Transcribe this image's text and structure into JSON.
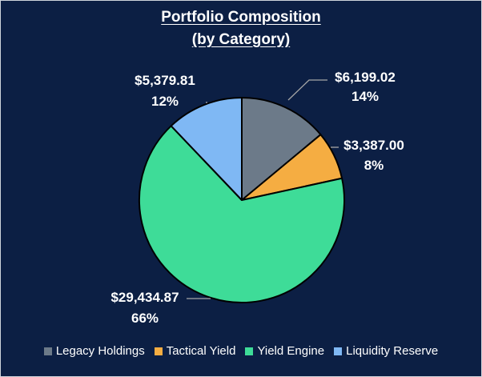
{
  "chart_data": {
    "type": "pie",
    "title_line1": "Portfolio Composition",
    "title_line2": "(by Category)",
    "start_angle_deg": 0,
    "direction": "clockwise",
    "slices": [
      {
        "label": "Legacy Holdings",
        "value": 6199.02,
        "value_label": "$6,199.02",
        "percent_label": "14%",
        "color": "#6c7a89"
      },
      {
        "label": "Tactical Yield",
        "value": 3387.0,
        "value_label": "$3,387.00",
        "percent_label": "8%",
        "color": "#f5ad42"
      },
      {
        "label": "Yield Engine",
        "value": 29434.87,
        "value_label": "$29,434.87",
        "percent_label": "66%",
        "color": "#3edc98"
      },
      {
        "label": "Liquidity Reserve",
        "value": 5379.81,
        "value_label": "$5,379.81",
        "percent_label": "12%",
        "color": "#7fb8f4"
      }
    ],
    "legend_position": "bottom"
  },
  "colors": {
    "background": "#0c1f44",
    "slice_border": "#000000",
    "leader_line": "#a6a6a6",
    "text": "#ffffff"
  }
}
